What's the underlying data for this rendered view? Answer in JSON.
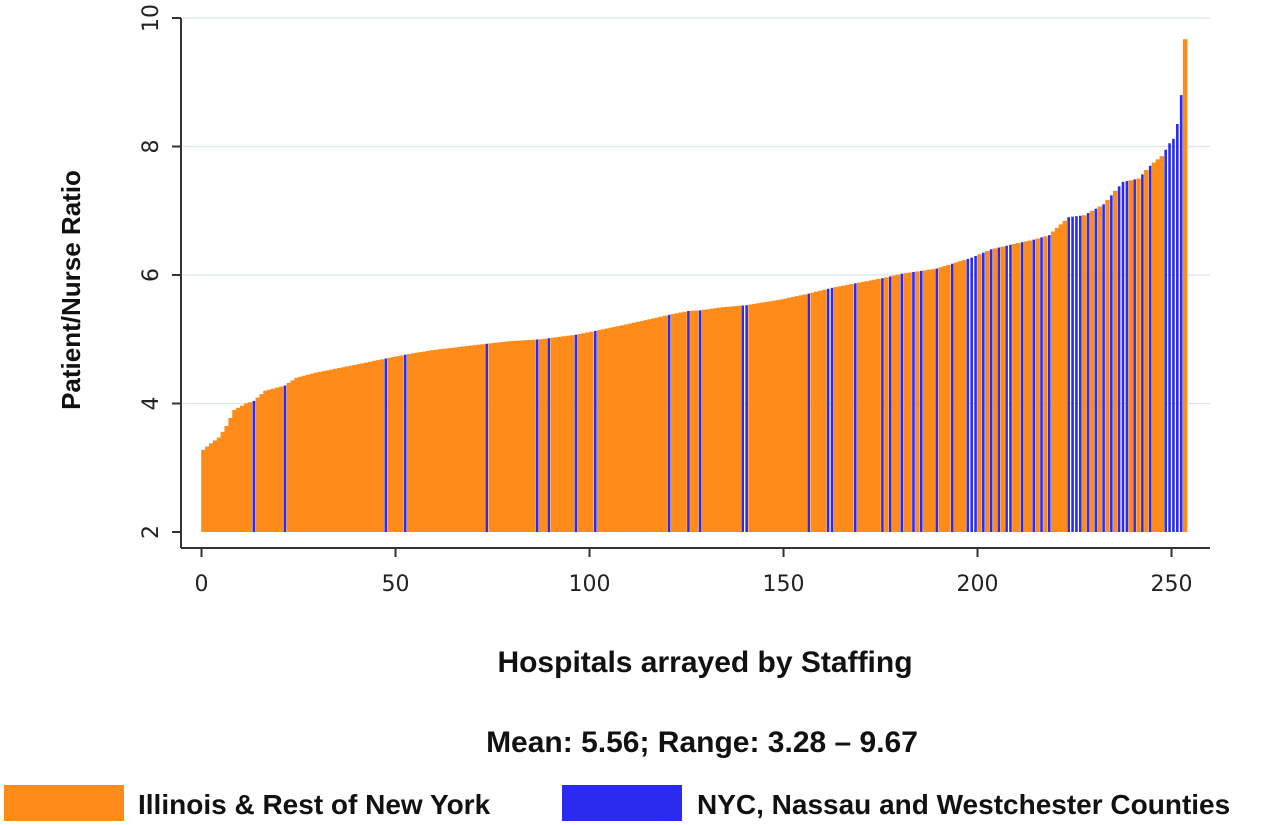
{
  "chart_data": {
    "type": "bar",
    "xlabel": "Hospitals arrayed by Staffing",
    "ylabel": "Patient/Nurse Ratio",
    "subtitle": "Mean: 5.56; Range: 3.28 – 9.67",
    "xlim": [
      -1,
      256
    ],
    "ylim": [
      2,
      10
    ],
    "bar_base": 2,
    "x_ticks": [
      0,
      50,
      100,
      150,
      200,
      250
    ],
    "y_ticks": [
      2,
      4,
      6,
      8,
      10
    ],
    "grid": "horizontal",
    "legend_position": "bottom",
    "series": [
      {
        "name": "Illinois & Rest of New York",
        "color": "#FF8C1A"
      },
      {
        "name": "NYC, Nassau and Westchester Counties",
        "color": "#2B2BF0"
      }
    ],
    "sorted_ratio_anchors": [
      [
        1,
        3.28
      ],
      [
        3,
        3.38
      ],
      [
        5,
        3.47
      ],
      [
        7,
        3.65
      ],
      [
        9,
        3.9
      ],
      [
        12,
        4.0
      ],
      [
        14,
        4.04
      ],
      [
        17,
        4.2
      ],
      [
        22,
        4.28
      ],
      [
        25,
        4.4
      ],
      [
        30,
        4.48
      ],
      [
        40,
        4.6
      ],
      [
        48,
        4.7
      ],
      [
        53,
        4.76
      ],
      [
        60,
        4.83
      ],
      [
        74,
        4.93
      ],
      [
        80,
        4.97
      ],
      [
        88,
        5.0
      ],
      [
        97,
        5.07
      ],
      [
        102,
        5.13
      ],
      [
        110,
        5.23
      ],
      [
        121,
        5.38
      ],
      [
        126,
        5.44
      ],
      [
        129,
        5.45
      ],
      [
        135,
        5.5
      ],
      [
        141,
        5.53
      ],
      [
        150,
        5.62
      ],
      [
        157,
        5.71
      ],
      [
        163,
        5.8
      ],
      [
        169,
        5.87
      ],
      [
        176,
        5.95
      ],
      [
        181,
        6.02
      ],
      [
        190,
        6.1
      ],
      [
        199,
        6.27
      ],
      [
        204,
        6.4
      ],
      [
        209,
        6.47
      ],
      [
        215,
        6.55
      ],
      [
        219,
        6.62
      ],
      [
        224,
        6.9
      ],
      [
        228,
        6.93
      ],
      [
        233,
        7.1
      ],
      [
        238,
        7.45
      ],
      [
        242,
        7.5
      ],
      [
        245,
        7.7
      ],
      [
        248,
        7.85
      ],
      [
        250,
        8.05
      ],
      [
        251,
        8.12
      ],
      [
        252,
        8.35
      ],
      [
        253,
        8.8
      ],
      [
        254,
        9.67
      ]
    ],
    "nyc_area_hospitals": [
      14,
      22,
      48,
      53,
      74,
      87,
      90,
      97,
      102,
      121,
      126,
      129,
      140,
      141,
      157,
      162,
      163,
      169,
      176,
      178,
      181,
      184,
      186,
      190,
      194,
      198,
      199,
      200,
      202,
      204,
      206,
      208,
      209,
      212,
      215,
      217,
      219,
      224,
      225,
      226,
      227,
      229,
      231,
      233,
      235,
      237,
      238,
      239,
      241,
      243,
      245,
      249,
      250,
      251,
      252,
      253
    ]
  }
}
